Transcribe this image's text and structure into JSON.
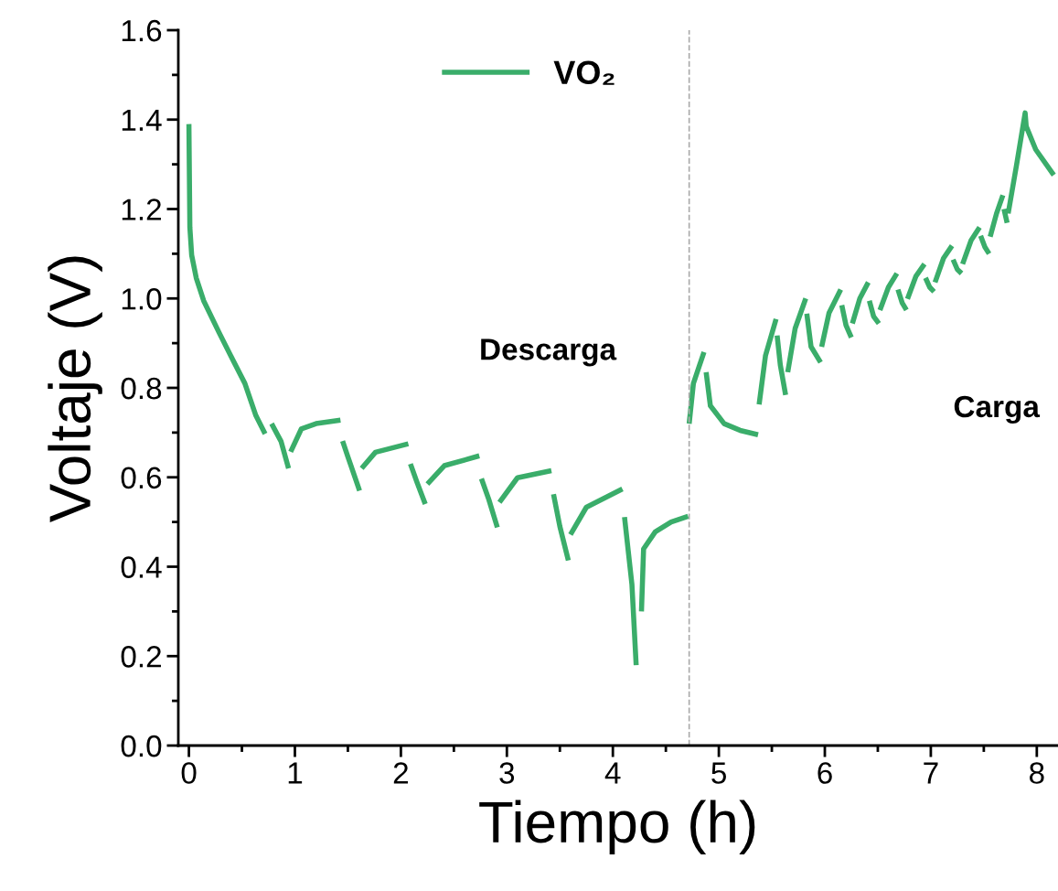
{
  "chart_data": {
    "type": "line",
    "xlabel": "Tiempo (h)",
    "ylabel": "Voltaje (V)",
    "xlim": [
      -0.1,
      8.2
    ],
    "ylim": [
      0,
      1.6
    ],
    "xticks": [
      0,
      1,
      2,
      3,
      4,
      5,
      6,
      7,
      8
    ],
    "yticks": [
      {
        "value": 0,
        "label": "0.0"
      },
      0.2,
      0.4,
      0.6,
      0.8,
      {
        "value": 1.0,
        "label": "1.0"
      },
      1.2,
      1.4,
      1.6
    ],
    "legend": "top",
    "grid": false,
    "marker": "none",
    "line_style": "solid",
    "annotations": [
      "Descarga",
      "Carga"
    ],
    "ref_lines": [
      {
        "axis": "x",
        "value": 4.72,
        "color": "#aaaaaa",
        "line_style": "dashed"
      }
    ],
    "series": [
      {
        "name": "VO₂",
        "color": "#3aad6a",
        "x": [
          0,
          0.009,
          0.026,
          0.069,
          0.139,
          0.286,
          0.416,
          0.528,
          0.632,
          0.719,
          0.74,
          0.78,
          0.87,
          0.94,
          0.95,
          0.96,
          1.06,
          1.2,
          1.43,
          1.44,
          1.45,
          1.5,
          1.61,
          1.62,
          1.63,
          1.76,
          2.07,
          2.08,
          2.09,
          2.15,
          2.23,
          2.24,
          2.25,
          2.41,
          2.74,
          2.75,
          2.76,
          2.83,
          2.91,
          2.92,
          2.93,
          3.1,
          3.42,
          3.43,
          3.44,
          3.5,
          3.58,
          3.59,
          3.6,
          3.75,
          4.09,
          4.1,
          4.11,
          4.18,
          4.22,
          4.245,
          4.27,
          4.29,
          4.4,
          4.55,
          4.71,
          4.715,
          4.72,
          4.76,
          4.86,
          4.87,
          4.88,
          4.92,
          5.05,
          5.2,
          5.37,
          5.375,
          5.38,
          5.44,
          5.54,
          5.545,
          5.55,
          5.58,
          5.63,
          5.64,
          5.65,
          5.72,
          5.82,
          5.825,
          5.83,
          5.87,
          5.96,
          5.965,
          5.97,
          6.04,
          6.15,
          6.155,
          6.16,
          6.2,
          6.25,
          6.255,
          6.26,
          6.33,
          6.41,
          6.415,
          6.42,
          6.46,
          6.51,
          6.515,
          6.52,
          6.6,
          6.68,
          6.685,
          6.69,
          6.73,
          6.77,
          6.775,
          6.78,
          6.86,
          6.94,
          6.945,
          6.95,
          6.99,
          7.03,
          7.035,
          7.04,
          7.12,
          7.2,
          7.205,
          7.21,
          7.25,
          7.29,
          7.295,
          7.3,
          7.38,
          7.46,
          7.465,
          7.47,
          7.51,
          7.55,
          7.555,
          7.56,
          7.62,
          7.68,
          7.685,
          7.69,
          7.72,
          7.725,
          7.73,
          7.81,
          7.89,
          7.9,
          7.99,
          8.16
        ],
        "values": [
          1.39,
          1.159,
          1.097,
          1.046,
          0.995,
          0.923,
          0.862,
          0.81,
          0.738,
          0.697,
          null,
          0.72,
          0.68,
          0.62,
          null,
          0.657,
          0.708,
          0.72,
          0.728,
          null,
          0.681,
          0.646,
          0.57,
          null,
          0.62,
          0.656,
          0.675,
          null,
          0.63,
          0.59,
          0.54,
          null,
          0.585,
          0.626,
          0.648,
          null,
          0.597,
          0.55,
          0.488,
          null,
          0.544,
          0.599,
          0.615,
          null,
          0.562,
          0.49,
          0.414,
          null,
          0.472,
          0.533,
          0.574,
          null,
          0.511,
          0.36,
          0.18,
          null,
          0.3,
          0.44,
          0.478,
          0.5,
          0.513,
          null,
          0.72,
          0.81,
          0.88,
          null,
          0.835,
          0.76,
          0.72,
          0.705,
          0.695,
          null,
          0.763,
          0.872,
          0.954,
          null,
          0.917,
          0.851,
          0.784,
          null,
          0.835,
          0.933,
          1.0,
          null,
          0.966,
          0.892,
          0.857,
          null,
          0.892,
          0.968,
          1.02,
          null,
          0.985,
          0.94,
          0.913,
          null,
          0.944,
          1.0,
          1.036,
          null,
          0.995,
          0.96,
          0.944,
          null,
          0.974,
          1.025,
          1.056,
          null,
          1.02,
          0.99,
          0.974,
          null,
          0.999,
          1.05,
          1.077,
          null,
          1.046,
          1.025,
          1.015,
          null,
          1.036,
          1.09,
          1.118,
          null,
          1.087,
          1.065,
          1.056,
          null,
          1.077,
          1.13,
          1.159,
          null,
          1.14,
          1.115,
          1.1,
          null,
          1.138,
          1.19,
          1.231,
          null,
          1.2,
          1.169,
          null,
          1.19,
          1.3,
          1.415,
          1.385,
          1.333,
          1.276
        ]
      }
    ]
  }
}
